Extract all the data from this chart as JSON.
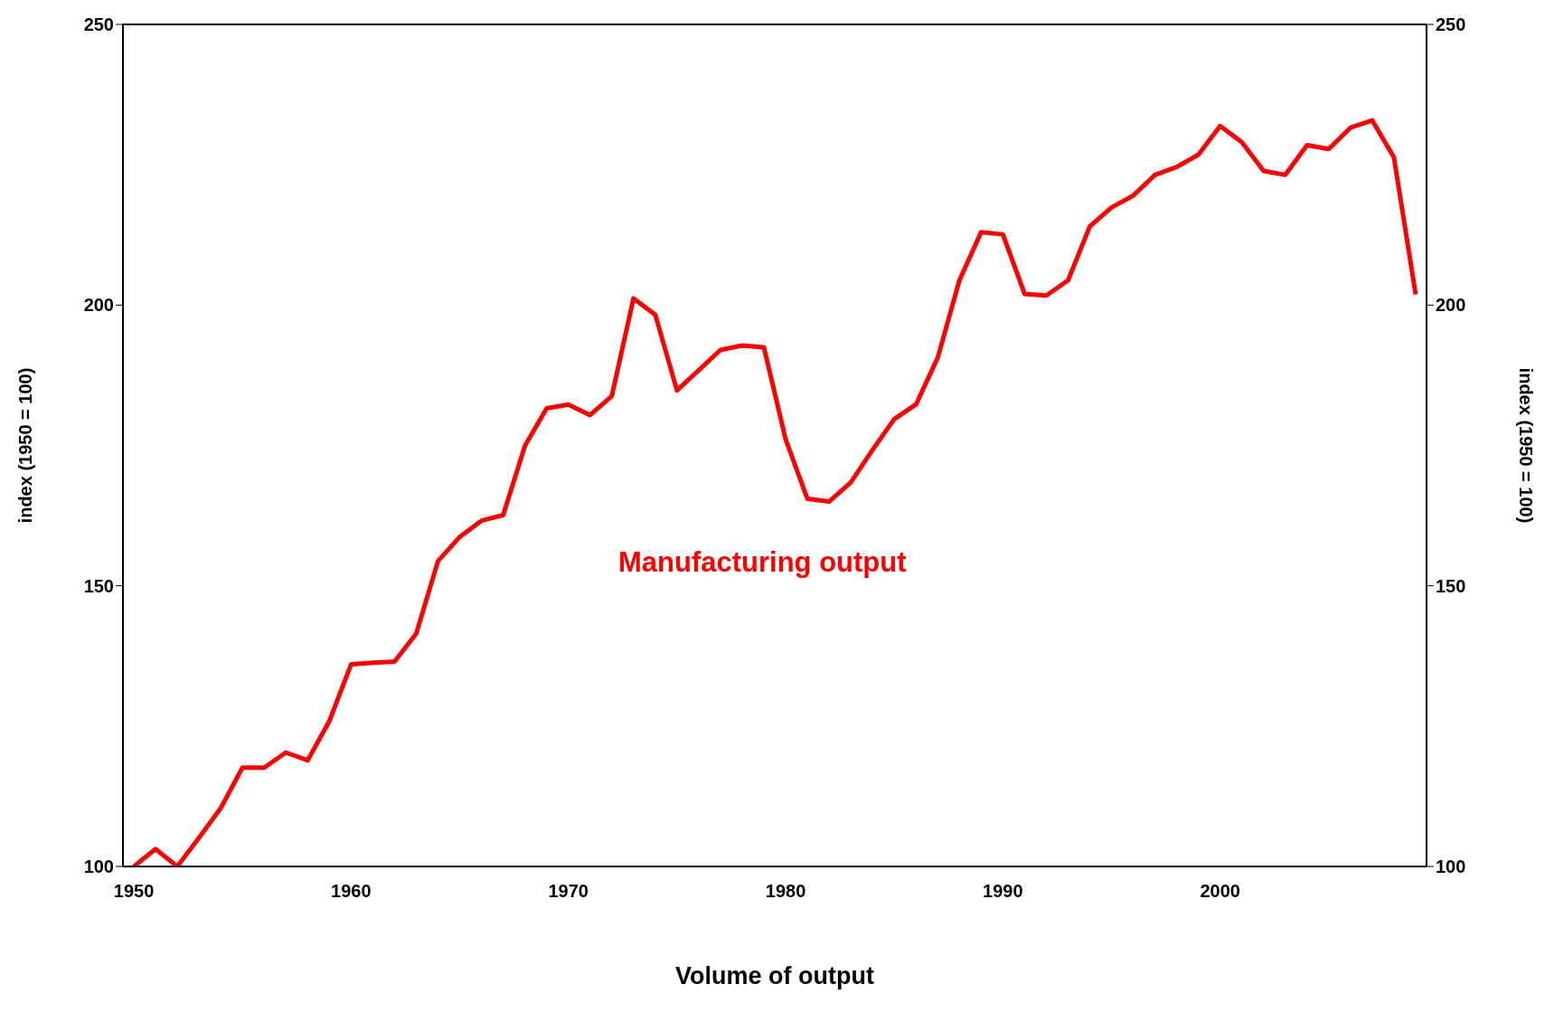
{
  "chart_data": {
    "type": "line",
    "xlabel": "Volume of output",
    "ylabel": "index  (1950 = 100)",
    "y2label": "index  (1950 = 100)",
    "x": [
      1950,
      1951,
      1952,
      1953,
      1954,
      1955,
      1956,
      1957,
      1958,
      1959,
      1960,
      1961,
      1962,
      1963,
      1964,
      1965,
      1966,
      1967,
      1968,
      1969,
      1970,
      1971,
      1972,
      1973,
      1974,
      1975,
      1976,
      1977,
      1978,
      1979,
      1980,
      1981,
      1982,
      1983,
      1984,
      1985,
      1986,
      1987,
      1988,
      1989,
      1990,
      1991,
      1992,
      1993,
      1994,
      1995,
      1996,
      1997,
      1998,
      1999,
      2000,
      2001,
      2002,
      2003,
      2004,
      2005,
      2006,
      2007,
      2008,
      2009
    ],
    "series": [
      {
        "name": "Manufacturing output",
        "color": "#ff0000",
        "values": [
          100,
          103.1,
          100,
          105.1,
          110.4,
          117.6,
          117.6,
          120.3,
          118.9,
          125.9,
          136.0,
          136.3,
          136.5,
          141.5,
          154.4,
          158.7,
          161.6,
          162.6,
          174.9,
          181.6,
          182.3,
          180.4,
          183.8,
          201.2,
          198.3,
          184.8,
          188.4,
          192.0,
          192.8,
          192.5,
          176.1,
          165.5,
          165.0,
          168.4,
          174.2,
          179.7,
          182.3,
          190.6,
          204.4,
          213.0,
          212.6,
          202.0,
          201.7,
          204.4,
          214.0,
          217.4,
          219.5,
          223.2,
          224.6,
          226.8,
          231.9,
          229.0,
          223.9,
          223.2,
          228.5,
          227.8,
          231.6,
          232.9,
          226.3,
          201.9
        ]
      }
    ],
    "xlim": [
      1949.5,
      2009.5
    ],
    "xticks": [
      1950,
      1960,
      1970,
      1980,
      1990,
      2000
    ],
    "ylim": [
      100,
      250
    ],
    "yticks": [
      100,
      150,
      200,
      250
    ],
    "y2lim": [
      100,
      250
    ],
    "y2ticks": [
      100,
      150,
      200,
      250
    ],
    "grid": false,
    "legend": false,
    "marker": "none",
    "line_style": "solid"
  }
}
